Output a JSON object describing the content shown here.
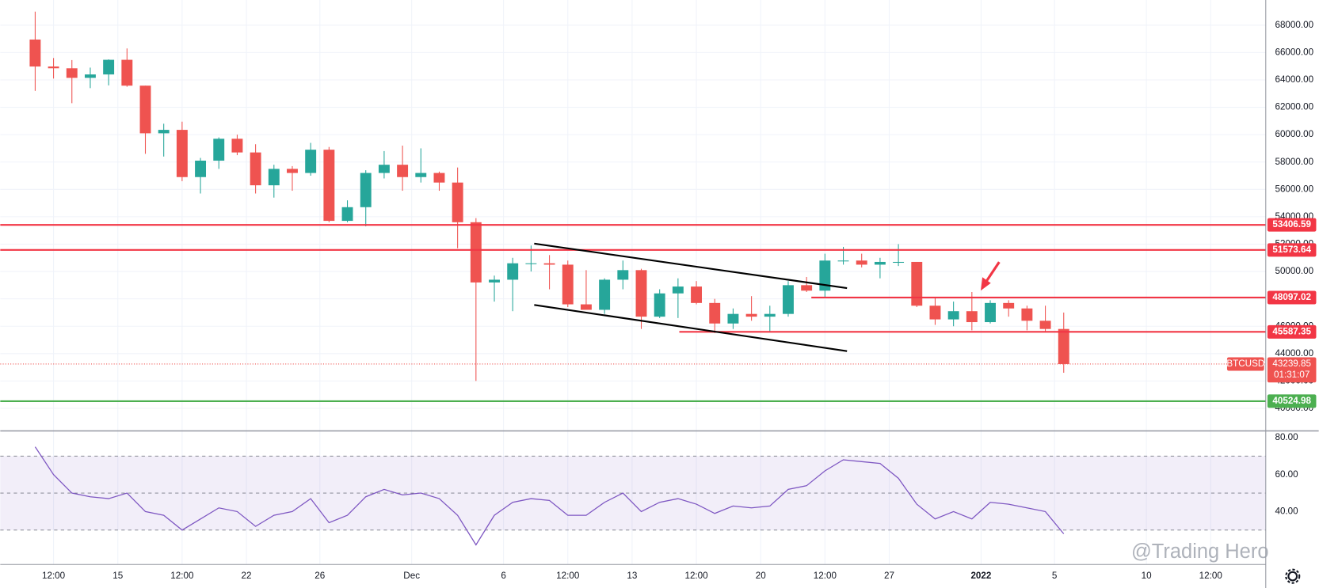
{
  "chart_data": {
    "type": "candlestick",
    "symbol": "BTCUSD",
    "last_price": 43239.85,
    "countdown": "01:31:07",
    "watermark": "@Trading Hero",
    "up_color": "#26a69a",
    "down_color": "#ef5350",
    "grid": true,
    "x": [
      10.5,
      11.5,
      12.5,
      13.5,
      14.5,
      15.5,
      16.5,
      17.5,
      18.5,
      19.5,
      20.5,
      21.5,
      22.5,
      23.5,
      24.5,
      25.5,
      26.5,
      27.5,
      28.5,
      29.5,
      30.5,
      31.5,
      32.5,
      33.5,
      34.5,
      35.5,
      36.5,
      37.5,
      38.5,
      39.5,
      40.5,
      41.5,
      42.5,
      43.5,
      44.5,
      45.5,
      46.5,
      47.5,
      48.5,
      49.5,
      50.5,
      51.5,
      52.5,
      53.5,
      54.5,
      55.5,
      56.5,
      57.5,
      58.5,
      59.5,
      60.5,
      61.5,
      62.5,
      63.5,
      64.5,
      65.5,
      66.5
    ],
    "open": [
      66950,
      64980,
      64850,
      64150,
      64400,
      65470,
      63580,
      60100,
      60350,
      56900,
      58100,
      59700,
      58700,
      56300,
      57500,
      57200,
      58900,
      53700,
      54700,
      57200,
      57800,
      56900,
      57200,
      56500,
      53600,
      49200,
      49400,
      50600,
      50600,
      50500,
      47600,
      47200,
      49400,
      50100,
      46700,
      48400,
      48900,
      47700,
      46200,
      46900,
      46700,
      46900,
      49000,
      48600,
      50800,
      50800,
      50500,
      50700,
      50700,
      47500,
      46500,
      47100,
      46300,
      47700,
      47300,
      46400,
      45800
    ],
    "high": [
      68990,
      65600,
      65450,
      64900,
      65500,
      66300,
      63580,
      60800,
      60950,
      58300,
      59800,
      60000,
      59300,
      57800,
      57700,
      59400,
      59100,
      55200,
      57400,
      58800,
      59200,
      59000,
      57300,
      57600,
      53900,
      49700,
      51000,
      51900,
      51200,
      50800,
      50100,
      49500,
      50800,
      50200,
      48700,
      49500,
      49300,
      48000,
      47300,
      48200,
      47500,
      49300,
      49600,
      51300,
      51800,
      51300,
      51000,
      52000,
      50700,
      48100,
      47800,
      48500,
      47900,
      47900,
      47500,
      47500,
      47000
    ],
    "low": [
      63200,
      64100,
      62300,
      63400,
      63600,
      63500,
      58600,
      58400,
      56600,
      55700,
      57500,
      58500,
      55700,
      55400,
      55900,
      57000,
      53600,
      53600,
      53300,
      56800,
      55900,
      56500,
      55900,
      51700,
      42000,
      47800,
      47100,
      50000,
      48700,
      47400,
      47300,
      46900,
      48700,
      45800,
      46600,
      46600,
      47600,
      45500,
      45800,
      46400,
      45600,
      46700,
      48500,
      48100,
      50500,
      50300,
      49500,
      50400,
      47400,
      46100,
      46000,
      45700,
      46200,
      46700,
      45700,
      45600,
      42600
    ],
    "close": [
      64980,
      64850,
      64150,
      64400,
      65470,
      63580,
      60100,
      60350,
      56900,
      58100,
      59700,
      58700,
      56300,
      57500,
      57200,
      58900,
      53700,
      54700,
      57200,
      57800,
      56900,
      57200,
      56500,
      53600,
      49200,
      49400,
      50600,
      50600,
      50500,
      47600,
      47200,
      49400,
      50100,
      46700,
      48400,
      48900,
      47700,
      46200,
      46900,
      46700,
      46900,
      49000,
      48600,
      50800,
      50800,
      50500,
      50700,
      50700,
      47500,
      46500,
      47100,
      46300,
      47700,
      47300,
      46400,
      45800,
      43240
    ],
    "xlim": [
      8.6,
      77.5
    ],
    "xticks": [
      {
        "value": 11.5,
        "label": "12:00"
      },
      15,
      {
        "value": 18.5,
        "label": "12:00"
      },
      22,
      26,
      {
        "value": 31,
        "label": "Dec"
      },
      {
        "value": 36,
        "label": "6"
      },
      {
        "value": 39.5,
        "label": "12:00"
      },
      {
        "value": 43,
        "label": "13"
      },
      {
        "value": 46.5,
        "label": "12:00"
      },
      {
        "value": 50,
        "label": "20"
      },
      {
        "value": 53.5,
        "label": "12:00"
      },
      {
        "value": 57,
        "label": "27"
      },
      {
        "value": 62,
        "label": "2022"
      },
      {
        "value": 66,
        "label": "5"
      },
      {
        "value": 71,
        "label": "10"
      },
      {
        "value": 74.5,
        "label": "12:00"
      }
    ],
    "ylim": [
      38350,
      69840
    ],
    "yticks": [
      {
        "value": 40000,
        "label": "40000.00"
      },
      {
        "value": 42000,
        "label": "42000.00"
      },
      {
        "value": 44000,
        "label": "44000.00"
      },
      {
        "value": 46000,
        "label": "46000.00"
      },
      {
        "value": 48000,
        "label": "48000.00"
      },
      {
        "value": 50000,
        "label": "50000.00"
      },
      {
        "value": 52000,
        "label": "52000.00"
      },
      {
        "value": 54000,
        "label": "54000.00"
      },
      {
        "value": 56000,
        "label": "56000.00"
      },
      {
        "value": 58000,
        "label": "58000.00"
      },
      {
        "value": 60000,
        "label": "60000.00"
      },
      {
        "value": 62000,
        "label": "62000.00"
      },
      {
        "value": 64000,
        "label": "64000.00"
      },
      {
        "value": 66000,
        "label": "66000.00"
      },
      {
        "value": 68000,
        "label": "68000.00"
      }
    ],
    "levels": [
      {
        "value": 53406.59,
        "color": "#f23645"
      },
      {
        "value": 51573.64,
        "color": "#f23645"
      },
      {
        "value": 48097.02,
        "color": "#f23645",
        "x_start": 52.76
      },
      {
        "value": 45587.35,
        "color": "#f23645",
        "x_start": 45.57
      },
      {
        "value": 40524.98,
        "color": "#4caf50"
      }
    ],
    "rsi": {
      "color": "#7e57c2",
      "values": [
        75,
        60,
        50,
        48,
        47,
        50,
        40,
        38,
        30,
        36,
        42,
        40,
        32,
        38,
        40,
        47,
        34,
        38,
        48,
        52,
        49,
        50,
        47,
        38,
        22,
        38,
        45,
        47,
        46,
        38,
        38,
        45,
        50,
        40,
        45,
        47,
        44,
        39,
        43,
        42,
        43,
        52,
        54,
        62,
        68,
        67,
        66,
        58,
        44,
        36,
        40,
        36,
        45,
        44,
        42,
        40,
        28
      ],
      "ylim": [
        11.4,
        83.6
      ],
      "yticks": [
        {
          "value": 40,
          "label": "40.00"
        },
        {
          "value": 60,
          "label": "60.00"
        },
        {
          "value": 80,
          "label": "80.00"
        }
      ],
      "band": [
        30,
        70
      ],
      "midline": 50
    }
  }
}
